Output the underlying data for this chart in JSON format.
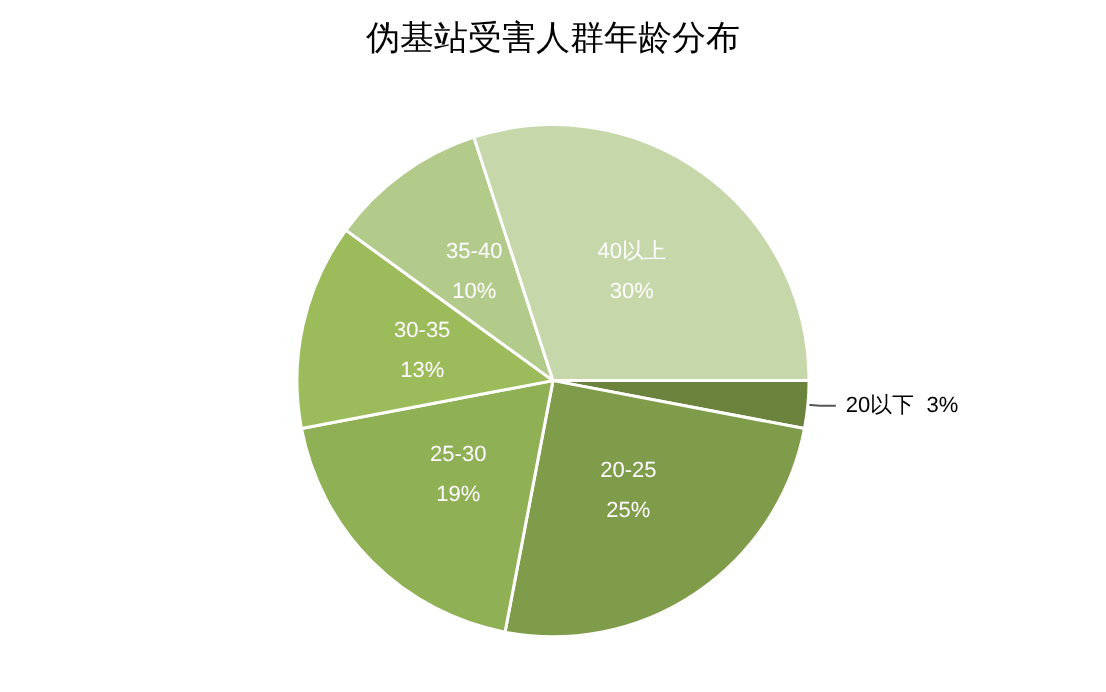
{
  "chart_data": {
    "type": "pie",
    "title": "伪基站受害人群年龄分布",
    "categories": [
      "20以下",
      "20-25",
      "25-30",
      "30-35",
      "35-40",
      "40以上"
    ],
    "values": [
      3,
      25,
      19,
      13,
      10,
      30
    ],
    "value_labels": [
      "3%",
      "25%",
      "19%",
      "13%",
      "10%",
      "30%"
    ],
    "colors": [
      "#6b833d",
      "#7f9c4a",
      "#8fb055",
      "#9cbc5c",
      "#b2cb8a",
      "#c6d8aa"
    ],
    "legend": false
  }
}
